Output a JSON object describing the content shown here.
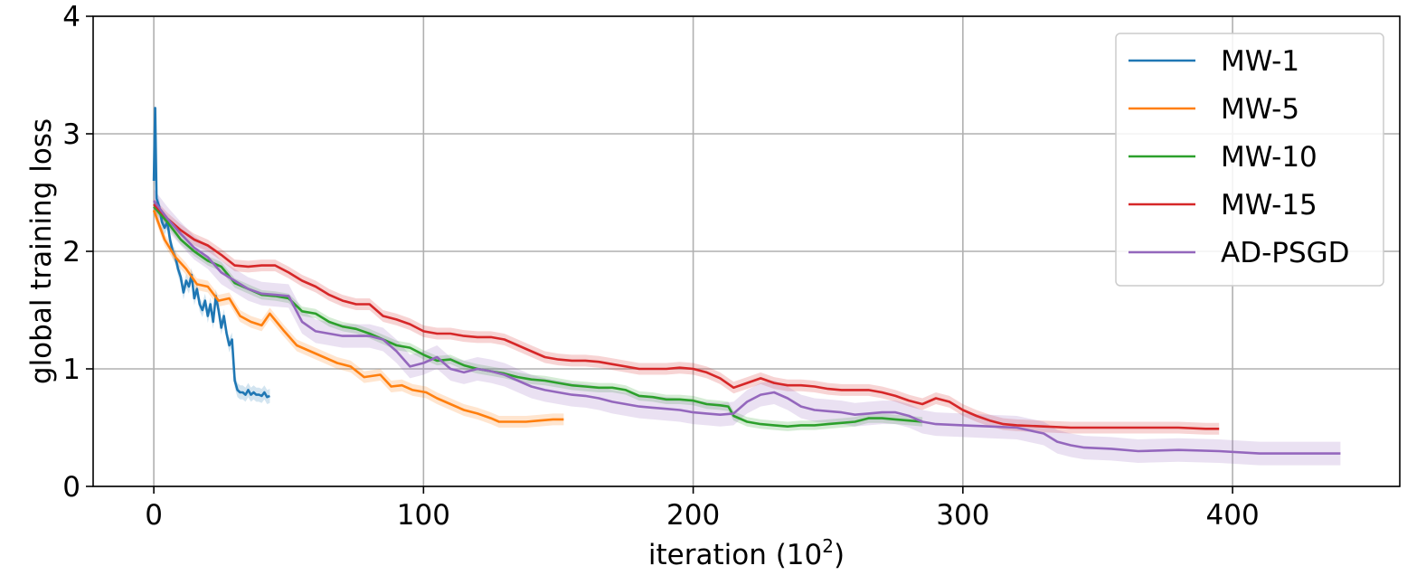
{
  "chart_data": {
    "type": "line",
    "title": "",
    "xlabel": "iteration (10",
    "xlabel_sup": "2",
    "xlabel_close": ")",
    "ylabel": "global training loss",
    "xlim": [
      -22.5,
      462
    ],
    "ylim": [
      0,
      4
    ],
    "x_ticks": [
      0,
      100,
      200,
      300,
      400
    ],
    "y_ticks": [
      0,
      1,
      2,
      3,
      4
    ],
    "grid": true,
    "legend_position": "top-right",
    "series": [
      {
        "name": "MW-1",
        "color": "#1f77b4",
        "band": 0.06,
        "points": [
          [
            0,
            2.6
          ],
          [
            0.5,
            3.22
          ],
          [
            1,
            2.45
          ],
          [
            2,
            2.38
          ],
          [
            3,
            2.25
          ],
          [
            4,
            2.2
          ],
          [
            5,
            2.25
          ],
          [
            6,
            2.1
          ],
          [
            7,
            2.0
          ],
          [
            8,
            1.95
          ],
          [
            9,
            1.85
          ],
          [
            10,
            1.78
          ],
          [
            11,
            1.65
          ],
          [
            12,
            1.75
          ],
          [
            13,
            1.7
          ],
          [
            14,
            1.8
          ],
          [
            15,
            1.6
          ],
          [
            16,
            1.68
          ],
          [
            17,
            1.55
          ],
          [
            18,
            1.5
          ],
          [
            19,
            1.58
          ],
          [
            20,
            1.45
          ],
          [
            21,
            1.55
          ],
          [
            22,
            1.4
          ],
          [
            23,
            1.62
          ],
          [
            24,
            1.5
          ],
          [
            25,
            1.35
          ],
          [
            26,
            1.45
          ],
          [
            27,
            1.3
          ],
          [
            28,
            1.2
          ],
          [
            29,
            1.25
          ],
          [
            30,
            0.9
          ],
          [
            31,
            0.82
          ],
          [
            32,
            0.8
          ],
          [
            33,
            0.8
          ],
          [
            34,
            0.78
          ],
          [
            35,
            0.82
          ],
          [
            36,
            0.78
          ],
          [
            37,
            0.8
          ],
          [
            38,
            0.78
          ],
          [
            39,
            0.78
          ],
          [
            40,
            0.77
          ],
          [
            41,
            0.8
          ],
          [
            42,
            0.76
          ],
          [
            43,
            0.77
          ]
        ]
      },
      {
        "name": "MW-5",
        "color": "#ff7f0e",
        "band": 0.05,
        "points": [
          [
            0,
            2.35
          ],
          [
            4,
            2.1
          ],
          [
            8,
            1.95
          ],
          [
            12,
            1.85
          ],
          [
            16,
            1.72
          ],
          [
            20,
            1.7
          ],
          [
            24,
            1.58
          ],
          [
            28,
            1.6
          ],
          [
            32,
            1.45
          ],
          [
            36,
            1.4
          ],
          [
            40,
            1.37
          ],
          [
            43,
            1.47
          ],
          [
            48,
            1.33
          ],
          [
            53,
            1.2
          ],
          [
            58,
            1.15
          ],
          [
            63,
            1.1
          ],
          [
            68,
            1.05
          ],
          [
            73,
            1.02
          ],
          [
            78,
            0.93
          ],
          [
            84,
            0.95
          ],
          [
            88,
            0.85
          ],
          [
            92,
            0.86
          ],
          [
            96,
            0.82
          ],
          [
            101,
            0.8
          ],
          [
            105,
            0.75
          ],
          [
            110,
            0.7
          ],
          [
            115,
            0.65
          ],
          [
            120,
            0.62
          ],
          [
            125,
            0.58
          ],
          [
            128,
            0.55
          ],
          [
            133,
            0.55
          ],
          [
            138,
            0.55
          ],
          [
            143,
            0.56
          ],
          [
            148,
            0.57
          ],
          [
            152,
            0.57
          ]
        ]
      },
      {
        "name": "MW-10",
        "color": "#2ca02c",
        "band": 0.04,
        "points": [
          [
            0,
            2.38
          ],
          [
            5,
            2.25
          ],
          [
            10,
            2.1
          ],
          [
            15,
            2.0
          ],
          [
            20,
            1.92
          ],
          [
            25,
            1.87
          ],
          [
            30,
            1.73
          ],
          [
            35,
            1.68
          ],
          [
            40,
            1.63
          ],
          [
            45,
            1.62
          ],
          [
            50,
            1.6
          ],
          [
            55,
            1.49
          ],
          [
            60,
            1.47
          ],
          [
            65,
            1.4
          ],
          [
            70,
            1.36
          ],
          [
            75,
            1.34
          ],
          [
            80,
            1.3
          ],
          [
            85,
            1.25
          ],
          [
            90,
            1.2
          ],
          [
            95,
            1.18
          ],
          [
            100,
            1.12
          ],
          [
            105,
            1.07
          ],
          [
            110,
            1.08
          ],
          [
            115,
            1.03
          ],
          [
            120,
            1.0
          ],
          [
            125,
            0.98
          ],
          [
            130,
            0.96
          ],
          [
            135,
            0.93
          ],
          [
            140,
            0.91
          ],
          [
            145,
            0.9
          ],
          [
            150,
            0.88
          ],
          [
            155,
            0.86
          ],
          [
            160,
            0.85
          ],
          [
            165,
            0.84
          ],
          [
            170,
            0.84
          ],
          [
            175,
            0.82
          ],
          [
            180,
            0.77
          ],
          [
            185,
            0.76
          ],
          [
            190,
            0.74
          ],
          [
            195,
            0.74
          ],
          [
            200,
            0.73
          ],
          [
            205,
            0.7
          ],
          [
            210,
            0.69
          ],
          [
            213,
            0.68
          ],
          [
            215,
            0.6
          ],
          [
            220,
            0.55
          ],
          [
            225,
            0.53
          ],
          [
            230,
            0.52
          ],
          [
            235,
            0.51
          ],
          [
            240,
            0.52
          ],
          [
            245,
            0.52
          ],
          [
            250,
            0.53
          ],
          [
            255,
            0.54
          ],
          [
            260,
            0.55
          ],
          [
            265,
            0.58
          ],
          [
            270,
            0.58
          ],
          [
            275,
            0.57
          ],
          [
            280,
            0.56
          ],
          [
            285,
            0.55
          ]
        ]
      },
      {
        "name": "MW-15",
        "color": "#d62728",
        "band": 0.05,
        "points": [
          [
            0,
            2.4
          ],
          [
            5,
            2.28
          ],
          [
            10,
            2.18
          ],
          [
            15,
            2.1
          ],
          [
            20,
            2.05
          ],
          [
            25,
            1.97
          ],
          [
            30,
            1.88
          ],
          [
            35,
            1.87
          ],
          [
            40,
            1.88
          ],
          [
            45,
            1.88
          ],
          [
            50,
            1.82
          ],
          [
            55,
            1.75
          ],
          [
            60,
            1.7
          ],
          [
            65,
            1.63
          ],
          [
            70,
            1.58
          ],
          [
            75,
            1.55
          ],
          [
            80,
            1.55
          ],
          [
            85,
            1.45
          ],
          [
            90,
            1.42
          ],
          [
            95,
            1.38
          ],
          [
            100,
            1.32
          ],
          [
            105,
            1.3
          ],
          [
            110,
            1.3
          ],
          [
            115,
            1.28
          ],
          [
            120,
            1.27
          ],
          [
            125,
            1.27
          ],
          [
            130,
            1.25
          ],
          [
            135,
            1.2
          ],
          [
            140,
            1.15
          ],
          [
            145,
            1.1
          ],
          [
            150,
            1.08
          ],
          [
            155,
            1.07
          ],
          [
            160,
            1.07
          ],
          [
            165,
            1.06
          ],
          [
            170,
            1.04
          ],
          [
            175,
            1.02
          ],
          [
            180,
            1.0
          ],
          [
            185,
            1.0
          ],
          [
            190,
            1.0
          ],
          [
            195,
            1.01
          ],
          [
            200,
            1.0
          ],
          [
            205,
            0.97
          ],
          [
            210,
            0.92
          ],
          [
            215,
            0.84
          ],
          [
            220,
            0.88
          ],
          [
            225,
            0.92
          ],
          [
            230,
            0.88
          ],
          [
            235,
            0.86
          ],
          [
            240,
            0.86
          ],
          [
            245,
            0.85
          ],
          [
            250,
            0.83
          ],
          [
            255,
            0.82
          ],
          [
            260,
            0.82
          ],
          [
            265,
            0.82
          ],
          [
            270,
            0.8
          ],
          [
            275,
            0.77
          ],
          [
            280,
            0.73
          ],
          [
            285,
            0.7
          ],
          [
            290,
            0.75
          ],
          [
            295,
            0.72
          ],
          [
            300,
            0.65
          ],
          [
            305,
            0.6
          ],
          [
            310,
            0.56
          ],
          [
            315,
            0.53
          ],
          [
            320,
            0.52
          ],
          [
            330,
            0.51
          ],
          [
            340,
            0.5
          ],
          [
            350,
            0.5
          ],
          [
            360,
            0.5
          ],
          [
            370,
            0.5
          ],
          [
            380,
            0.5
          ],
          [
            390,
            0.49
          ],
          [
            395,
            0.49
          ]
        ]
      },
      {
        "name": "AD-PSGD",
        "color": "#9467bd",
        "band": 0.1,
        "points": [
          [
            0,
            2.43
          ],
          [
            5,
            2.28
          ],
          [
            10,
            2.15
          ],
          [
            15,
            2.03
          ],
          [
            20,
            1.95
          ],
          [
            25,
            1.82
          ],
          [
            30,
            1.75
          ],
          [
            35,
            1.68
          ],
          [
            40,
            1.64
          ],
          [
            45,
            1.63
          ],
          [
            50,
            1.62
          ],
          [
            55,
            1.4
          ],
          [
            60,
            1.32
          ],
          [
            65,
            1.3
          ],
          [
            70,
            1.28
          ],
          [
            75,
            1.28
          ],
          [
            80,
            1.28
          ],
          [
            85,
            1.25
          ],
          [
            90,
            1.15
          ],
          [
            95,
            1.02
          ],
          [
            100,
            1.05
          ],
          [
            105,
            1.1
          ],
          [
            110,
            1.0
          ],
          [
            115,
            0.97
          ],
          [
            120,
            1.0
          ],
          [
            125,
            0.98
          ],
          [
            130,
            0.95
          ],
          [
            135,
            0.9
          ],
          [
            140,
            0.85
          ],
          [
            145,
            0.82
          ],
          [
            150,
            0.8
          ],
          [
            155,
            0.78
          ],
          [
            160,
            0.77
          ],
          [
            165,
            0.75
          ],
          [
            170,
            0.72
          ],
          [
            175,
            0.7
          ],
          [
            180,
            0.68
          ],
          [
            185,
            0.67
          ],
          [
            190,
            0.66
          ],
          [
            195,
            0.65
          ],
          [
            200,
            0.63
          ],
          [
            205,
            0.62
          ],
          [
            210,
            0.61
          ],
          [
            215,
            0.62
          ],
          [
            220,
            0.72
          ],
          [
            225,
            0.78
          ],
          [
            230,
            0.8
          ],
          [
            235,
            0.75
          ],
          [
            240,
            0.68
          ],
          [
            245,
            0.65
          ],
          [
            250,
            0.64
          ],
          [
            255,
            0.63
          ],
          [
            260,
            0.61
          ],
          [
            265,
            0.62
          ],
          [
            270,
            0.63
          ],
          [
            275,
            0.63
          ],
          [
            280,
            0.6
          ],
          [
            285,
            0.55
          ],
          [
            290,
            0.53
          ],
          [
            300,
            0.52
          ],
          [
            310,
            0.51
          ],
          [
            320,
            0.5
          ],
          [
            330,
            0.45
          ],
          [
            335,
            0.38
          ],
          [
            340,
            0.35
          ],
          [
            345,
            0.33
          ],
          [
            355,
            0.32
          ],
          [
            365,
            0.3
          ],
          [
            380,
            0.31
          ],
          [
            395,
            0.3
          ],
          [
            410,
            0.28
          ],
          [
            425,
            0.28
          ],
          [
            440,
            0.28
          ]
        ]
      }
    ]
  }
}
